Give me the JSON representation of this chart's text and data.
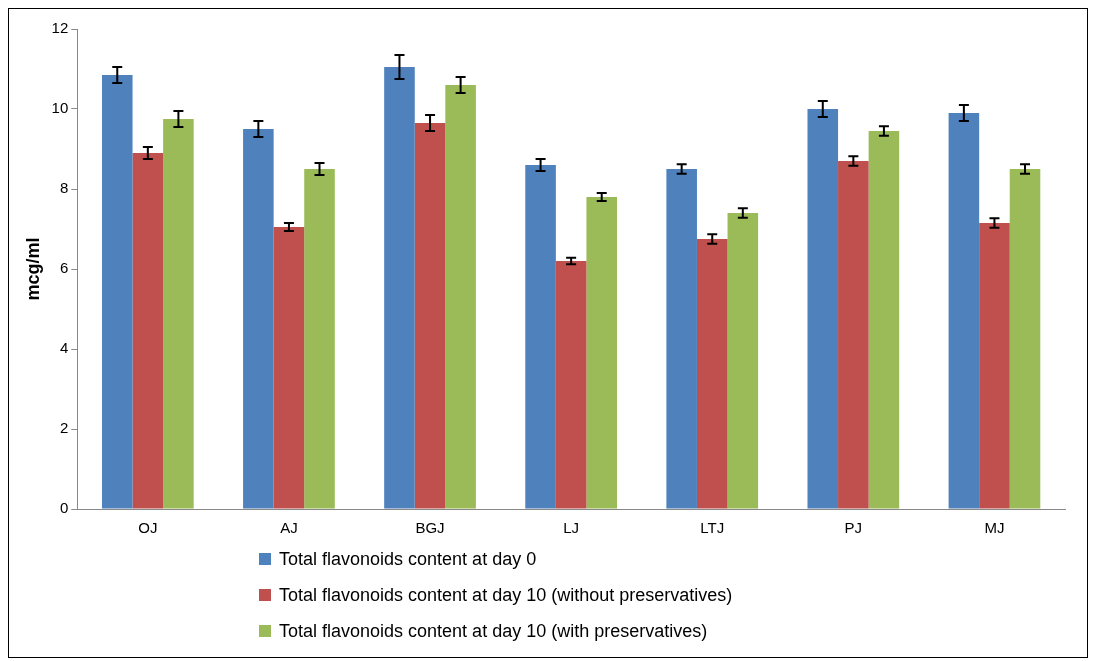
{
  "chart_data": {
    "type": "bar",
    "ylabel": "mcg/ml",
    "categories": [
      "OJ",
      "AJ",
      "BGJ",
      "LJ",
      "LTJ",
      "PJ",
      "MJ"
    ],
    "series": [
      {
        "name": "Total flavonoids content at day 0",
        "color": "#4f81bd",
        "values": [
          10.85,
          9.5,
          11.05,
          8.6,
          8.5,
          10.0,
          9.9
        ],
        "errors": [
          0.2,
          0.2,
          0.3,
          0.15,
          0.12,
          0.2,
          0.2
        ]
      },
      {
        "name": "Total flavonoids content at day 10 (without preservatives)",
        "color": "#c0504d",
        "values": [
          8.9,
          7.05,
          9.65,
          6.2,
          6.75,
          8.7,
          7.15
        ],
        "errors": [
          0.15,
          0.1,
          0.2,
          0.08,
          0.12,
          0.12,
          0.12
        ]
      },
      {
        "name": "Total flavonoids content at day 10 (with preservatives)",
        "color": "#9bbb59",
        "values": [
          9.75,
          8.5,
          10.6,
          7.8,
          7.4,
          9.45,
          8.5
        ],
        "errors": [
          0.2,
          0.15,
          0.2,
          0.1,
          0.12,
          0.12,
          0.12
        ]
      }
    ],
    "ylim": [
      0,
      12
    ],
    "yticks": [
      0,
      2,
      4,
      6,
      8,
      10,
      12
    ],
    "grid": false,
    "legend": "bottom"
  }
}
